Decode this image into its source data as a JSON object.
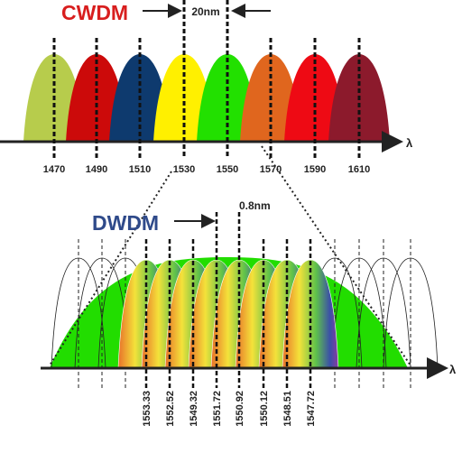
{
  "cwdm": {
    "title": "CWDM",
    "spacing": "20nm",
    "axis_label": "λ",
    "wavelengths": [
      "1470",
      "1490",
      "1510",
      "1530",
      "1550",
      "1570",
      "1590",
      "1610"
    ]
  },
  "dwdm": {
    "title": "DWDM",
    "spacing": "0.8nm",
    "axis_label": "λ",
    "wavelengths": [
      "1553.33",
      "1552.52",
      "1549.32",
      "1551.72",
      "1550.92",
      "1550.12",
      "1548.51",
      "1547.72"
    ]
  }
}
